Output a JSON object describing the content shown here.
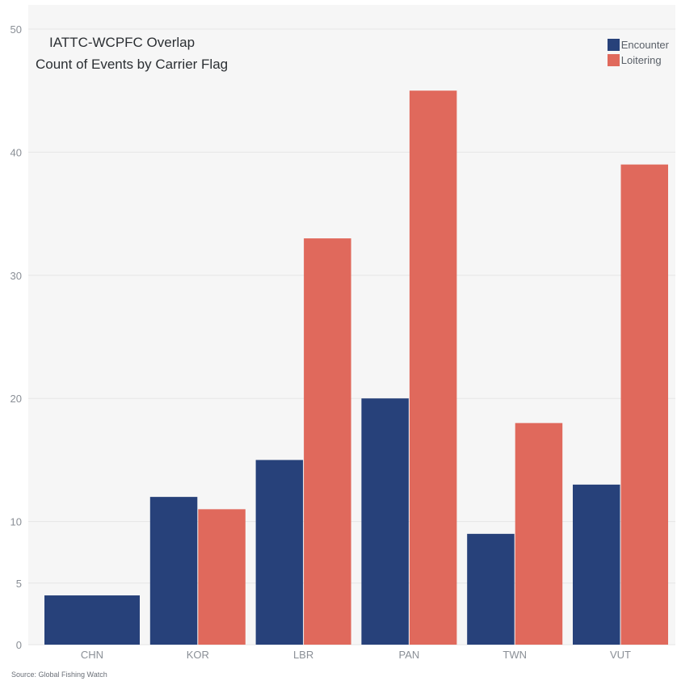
{
  "title_line1": "IATTC-WCPFC Overlap",
  "title_line2": "Count of Events by Carrier Flag",
  "source": "Source: Global Fishing Watch",
  "colors": {
    "encounter": "#27417a",
    "loitering": "#e0695c",
    "panel": "#f6f6f6",
    "grid": "#e6e6e6",
    "axis_text": "#8a8f96"
  },
  "chart_data": {
    "type": "bar",
    "title": "IATTC-WCPFC Overlap Count of Events by Carrier Flag",
    "categories": [
      "CHN",
      "KOR",
      "LBR",
      "PAN",
      "TWN",
      "VUT"
    ],
    "series": [
      {
        "name": "Encounter",
        "color": "#27417a",
        "values": [
          4,
          12,
          15,
          20,
          9,
          13
        ]
      },
      {
        "name": "Loitering",
        "color": "#e0695c",
        "values": [
          null,
          11,
          33,
          45,
          18,
          39
        ]
      }
    ],
    "y_ticks": [
      0,
      5,
      10,
      20,
      30,
      40,
      50
    ],
    "ylim": [
      0,
      50
    ],
    "grid": true,
    "legend_position": "top-right"
  }
}
